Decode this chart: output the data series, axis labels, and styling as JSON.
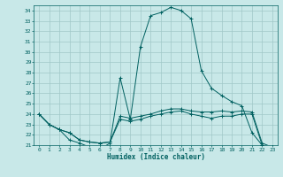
{
  "xlabel": "Humidex (Indice chaleur)",
  "bg_color": "#c8e8e8",
  "line_color": "#006060",
  "grid_color": "#a0c8c8",
  "xlim": [
    -0.5,
    23.5
  ],
  "ylim": [
    21,
    34.5
  ],
  "yticks": [
    21,
    22,
    23,
    24,
    25,
    26,
    27,
    28,
    29,
    30,
    31,
    32,
    33,
    34
  ],
  "xticks": [
    0,
    1,
    2,
    3,
    4,
    5,
    6,
    7,
    8,
    9,
    10,
    11,
    12,
    13,
    14,
    15,
    16,
    17,
    18,
    19,
    20,
    21,
    22,
    23
  ],
  "series": [
    [
      24.0,
      23.0,
      22.5,
      21.5,
      21.2,
      20.8,
      20.6,
      21.2,
      27.5,
      23.5,
      30.5,
      33.5,
      33.8,
      34.3,
      34.0,
      33.2,
      28.2,
      26.5,
      25.8,
      25.2,
      24.8,
      22.2,
      21.0,
      20.8
    ],
    [
      24.0,
      23.0,
      22.5,
      22.2,
      21.5,
      21.3,
      21.2,
      21.3,
      23.8,
      23.6,
      23.8,
      24.0,
      24.3,
      24.5,
      24.5,
      24.3,
      24.2,
      24.2,
      24.3,
      24.2,
      24.3,
      24.2,
      21.2,
      20.8
    ],
    [
      24.0,
      23.0,
      22.5,
      22.2,
      21.5,
      21.3,
      21.2,
      21.3,
      23.5,
      23.3,
      23.5,
      23.8,
      24.0,
      24.2,
      24.3,
      24.0,
      23.8,
      23.6,
      23.8,
      23.8,
      24.0,
      24.0,
      21.0,
      20.8
    ]
  ]
}
